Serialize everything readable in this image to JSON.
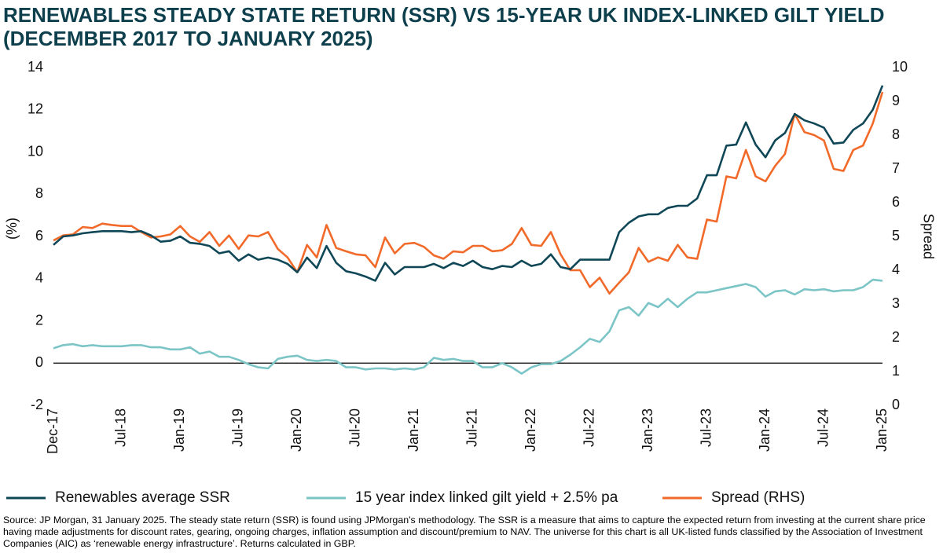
{
  "chart_data": {
    "type": "line",
    "title": [
      "RENEWABLES STEADY STATE RETURN (SSR) VS 15-YEAR UK INDEX-LINKED GILT YIELD",
      "(DECEMBER 2017 TO JANUARY 2025)"
    ],
    "ylabel": "(%)",
    "y2label": "Spread",
    "categories": [
      "Dec-17",
      null,
      null,
      null,
      null,
      null,
      null,
      "Jul-18",
      null,
      null,
      null,
      null,
      null,
      "Jan-19",
      null,
      null,
      null,
      null,
      null,
      "Jul-19",
      null,
      null,
      null,
      null,
      null,
      "Jan-20",
      null,
      null,
      null,
      null,
      null,
      "Jul-20",
      null,
      null,
      null,
      null,
      null,
      "Jan-21",
      null,
      null,
      null,
      null,
      null,
      "Jul-21",
      null,
      null,
      null,
      null,
      null,
      "Jan-22",
      null,
      null,
      null,
      null,
      null,
      "Jul-22",
      null,
      null,
      null,
      null,
      null,
      "Jan-23",
      null,
      null,
      null,
      null,
      null,
      "Jul-23",
      null,
      null,
      null,
      null,
      null,
      "Jan-24",
      null,
      null,
      null,
      null,
      null,
      "Jul-24",
      null,
      null,
      null,
      null,
      null,
      "Jan-25"
    ],
    "series": [
      {
        "name": "Renewables average SSR",
        "color": "#0f4757",
        "values": [
          5.6,
          6.0,
          6.05,
          6.15,
          6.2,
          6.25,
          6.25,
          6.25,
          6.2,
          6.25,
          6.05,
          5.75,
          5.8,
          6.0,
          5.7,
          5.65,
          5.55,
          5.2,
          5.3,
          4.85,
          5.15,
          4.9,
          5.0,
          4.9,
          4.7,
          4.3,
          5.0,
          4.5,
          5.55,
          4.75,
          4.35,
          4.25,
          4.1,
          3.9,
          4.75,
          4.2,
          4.55,
          4.55,
          4.55,
          4.7,
          4.5,
          4.75,
          4.6,
          4.85,
          4.55,
          4.45,
          4.6,
          4.55,
          4.85,
          4.6,
          4.7,
          5.15,
          4.55,
          4.45,
          4.9,
          4.9,
          4.9,
          4.9,
          6.2,
          6.65,
          6.95,
          7.05,
          7.05,
          7.35,
          7.45,
          7.45,
          7.8,
          8.9,
          8.9,
          10.3,
          10.35,
          11.4,
          10.35,
          9.75,
          10.55,
          10.9,
          11.8,
          11.5,
          11.35,
          11.15,
          10.4,
          10.45,
          11.05,
          11.35,
          12.0,
          13.15
        ]
      },
      {
        "name": "15 year index linked gilt yield + 2.5% pa",
        "color": "#7cc5c6",
        "values": [
          0.7,
          0.85,
          0.9,
          0.8,
          0.85,
          0.8,
          0.8,
          0.8,
          0.85,
          0.85,
          0.75,
          0.75,
          0.65,
          0.65,
          0.75,
          0.45,
          0.55,
          0.3,
          0.3,
          0.15,
          -0.05,
          -0.2,
          -0.25,
          0.2,
          0.3,
          0.35,
          0.15,
          0.1,
          0.15,
          0.1,
          -0.2,
          -0.2,
          -0.3,
          -0.25,
          -0.25,
          -0.3,
          -0.25,
          -0.3,
          -0.2,
          0.25,
          0.15,
          0.2,
          0.1,
          0.1,
          -0.2,
          -0.2,
          0.0,
          -0.2,
          -0.5,
          -0.2,
          -0.05,
          -0.05,
          0.1,
          0.4,
          0.75,
          1.15,
          1.0,
          1.5,
          2.5,
          2.65,
          2.25,
          2.85,
          2.65,
          3.05,
          2.65,
          3.05,
          3.35,
          3.35,
          3.45,
          3.55,
          3.65,
          3.75,
          3.6,
          3.15,
          3.4,
          3.45,
          3.25,
          3.5,
          3.45,
          3.5,
          3.4,
          3.45,
          3.45,
          3.6,
          3.95,
          3.9
        ]
      },
      {
        "name": "Spread (RHS)",
        "color": "#f26a2a",
        "axis": "y2",
        "values": [
          4.88,
          5.03,
          5.06,
          5.28,
          5.25,
          5.38,
          5.34,
          5.31,
          5.31,
          5.13,
          4.97,
          5.0,
          5.06,
          5.31,
          5.0,
          4.84,
          5.13,
          4.72,
          5.03,
          4.63,
          5.03,
          5.0,
          5.13,
          4.63,
          4.38,
          3.94,
          4.75,
          4.38,
          5.34,
          4.66,
          4.56,
          4.47,
          4.44,
          4.09,
          4.97,
          4.5,
          4.78,
          4.81,
          4.69,
          4.44,
          4.34,
          4.56,
          4.53,
          4.72,
          4.72,
          4.56,
          4.59,
          4.78,
          5.25,
          4.75,
          4.72,
          5.13,
          4.47,
          4.0,
          4.0,
          3.5,
          3.78,
          3.31,
          3.63,
          3.94,
          4.66,
          4.25,
          4.38,
          4.28,
          4.75,
          4.38,
          4.34,
          5.5,
          5.44,
          6.78,
          6.72,
          7.56,
          6.78,
          6.63,
          7.09,
          7.44,
          8.63,
          8.09,
          8.0,
          7.84,
          7.0,
          6.94,
          7.56,
          7.69,
          8.34,
          9.28
        ]
      }
    ],
    "ylim": [
      -2,
      14
    ],
    "yticks": [
      -2,
      0,
      2,
      4,
      6,
      8,
      10,
      12,
      14
    ],
    "y2lim": [
      0,
      10
    ],
    "y2ticks": [
      0,
      1,
      2,
      3,
      4,
      5,
      6,
      7,
      8,
      9,
      10
    ],
    "grid": false,
    "legend": "bottom",
    "source": "Source: JP Morgan, 31 January 2025.  The steady state return (SSR) is found using JPMorgan's methodology. The SSR is a measure that aims to capture the expected return from investing at the current share price having made adjustments for discount rates, gearing, ongoing charges, inflation assumption and discount/premium to NAV. The universe for this chart is all UK-listed funds classified by the Association of Investment Companies (AIC) as ‘renewable energy infrastructure’. Returns calculated in GBP."
  }
}
